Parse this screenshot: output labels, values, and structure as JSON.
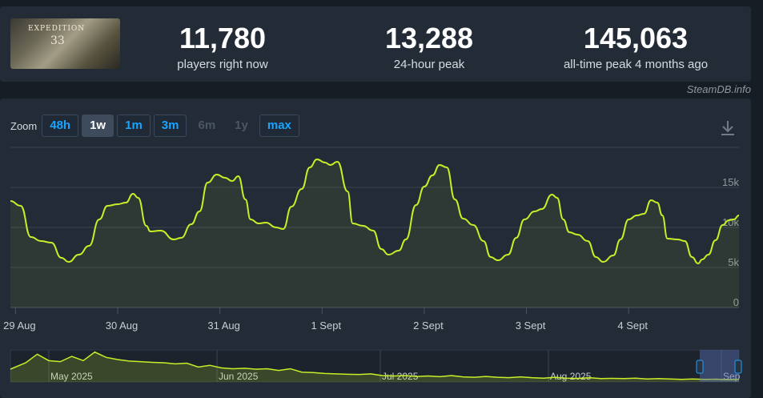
{
  "header": {
    "game_image_title": "EXPEDITION",
    "game_image_num": "33",
    "stats": [
      {
        "value": "11,780",
        "label": "players right now"
      },
      {
        "value": "13,288",
        "label": "24-hour peak"
      },
      {
        "value": "145,063",
        "label": "all-time peak 4 months ago"
      }
    ]
  },
  "watermark": "SteamDB.info",
  "zoom": {
    "label": "Zoom",
    "buttons": [
      {
        "label": "48h",
        "state": "normal"
      },
      {
        "label": "1w",
        "state": "active"
      },
      {
        "label": "1m",
        "state": "normal"
      },
      {
        "label": "3m",
        "state": "normal"
      },
      {
        "label": "6m",
        "state": "disabled"
      },
      {
        "label": "1y",
        "state": "disabled"
      },
      {
        "label": "max",
        "state": "normal"
      }
    ]
  },
  "colors": {
    "line": "#c9ee27",
    "grid": "#3a4553",
    "navigator_mask": "#5b6fb5"
  },
  "chart_data": [
    {
      "type": "line",
      "title": "",
      "xlabel": "",
      "ylabel": "",
      "ylim": [
        0,
        20000
      ],
      "y_ticks": [
        0,
        5000,
        10000,
        15000
      ],
      "y_tick_labels": [
        "0",
        "5k",
        "10k",
        "15k"
      ],
      "x_ticks": [
        0,
        1,
        2,
        3,
        4,
        5,
        6
      ],
      "x_tick_labels": [
        "29 Aug",
        "30 Aug",
        "31 Aug",
        "1 Sept",
        "2 Sept",
        "3 Sept",
        "4 Sept"
      ],
      "xlim": [
        -0.05,
        6.78
      ],
      "grid": true,
      "legend": "none",
      "series": [
        {
          "values": [
            [
              -0.05,
              13300
            ],
            [
              0.05,
              12700
            ],
            [
              0.15,
              8800
            ],
            [
              0.25,
              8300
            ],
            [
              0.35,
              8100
            ],
            [
              0.45,
              6200
            ],
            [
              0.52,
              5700
            ],
            [
              0.62,
              6600
            ],
            [
              0.72,
              7700
            ],
            [
              0.82,
              11000
            ],
            [
              0.9,
              12700
            ],
            [
              1.0,
              12900
            ],
            [
              1.08,
              13100
            ],
            [
              1.15,
              14200
            ],
            [
              1.2,
              13700
            ],
            [
              1.28,
              10200
            ],
            [
              1.32,
              9500
            ],
            [
              1.42,
              9600
            ],
            [
              1.55,
              8500
            ],
            [
              1.62,
              8700
            ],
            [
              1.72,
              10400
            ],
            [
              1.8,
              12000
            ],
            [
              1.88,
              15600
            ],
            [
              1.97,
              16600
            ],
            [
              2.05,
              16200
            ],
            [
              2.12,
              15800
            ],
            [
              2.18,
              16400
            ],
            [
              2.25,
              13500
            ],
            [
              2.3,
              11000
            ],
            [
              2.38,
              10500
            ],
            [
              2.45,
              10600
            ],
            [
              2.55,
              10000
            ],
            [
              2.62,
              9800
            ],
            [
              2.7,
              12600
            ],
            [
              2.8,
              14800
            ],
            [
              2.88,
              17500
            ],
            [
              2.95,
              18500
            ],
            [
              3.03,
              18100
            ],
            [
              3.08,
              17800
            ],
            [
              3.15,
              18200
            ],
            [
              3.25,
              14500
            ],
            [
              3.3,
              10500
            ],
            [
              3.4,
              10200
            ],
            [
              3.5,
              9600
            ],
            [
              3.58,
              7300
            ],
            [
              3.65,
              6600
            ],
            [
              3.75,
              7100
            ],
            [
              3.82,
              8500
            ],
            [
              3.92,
              12800
            ],
            [
              4.0,
              15100
            ],
            [
              4.08,
              16500
            ],
            [
              4.15,
              17800
            ],
            [
              4.22,
              17500
            ],
            [
              4.3,
              13500
            ],
            [
              4.38,
              11100
            ],
            [
              4.48,
              10300
            ],
            [
              4.58,
              8300
            ],
            [
              4.65,
              6300
            ],
            [
              4.72,
              5900
            ],
            [
              4.82,
              6600
            ],
            [
              4.9,
              8700
            ],
            [
              4.98,
              11000
            ],
            [
              5.08,
              12000
            ],
            [
              5.15,
              12300
            ],
            [
              5.25,
              14100
            ],
            [
              5.3,
              13700
            ],
            [
              5.36,
              11000
            ],
            [
              5.42,
              9400
            ],
            [
              5.5,
              9100
            ],
            [
              5.6,
              8300
            ],
            [
              5.68,
              6300
            ],
            [
              5.75,
              5700
            ],
            [
              5.85,
              6500
            ],
            [
              5.92,
              8500
            ],
            [
              6.0,
              11000
            ],
            [
              6.08,
              11500
            ],
            [
              6.15,
              11700
            ],
            [
              6.22,
              13400
            ],
            [
              6.28,
              13100
            ],
            [
              6.33,
              11500
            ],
            [
              6.38,
              8600
            ],
            [
              6.48,
              8500
            ],
            [
              6.55,
              8300
            ],
            [
              6.62,
              6300
            ],
            [
              6.68,
              5500
            ],
            [
              6.72,
              6000
            ],
            [
              6.78,
              6600
            ],
            [
              6.85,
              8400
            ],
            [
              6.92,
              10300
            ],
            [
              6.98,
              10900
            ],
            [
              7.03,
              11000
            ],
            [
              7.08,
              11500
            ]
          ]
        }
      ]
    },
    {
      "type": "area",
      "title": "navigator",
      "x_tick_labels": [
        "May 2025",
        "Jun 2025",
        "Jul 2025",
        "Aug 2025",
        "Sep"
      ],
      "ylim": [
        0,
        150000
      ],
      "series": [
        {
          "values": [
            [
              0,
              60000
            ],
            [
              4,
              90000
            ],
            [
              7,
              130000
            ],
            [
              10,
              100000
            ],
            [
              13,
              95000
            ],
            [
              16,
              120000
            ],
            [
              19,
              100000
            ],
            [
              22,
              140000
            ],
            [
              25,
              115000
            ],
            [
              28,
              105000
            ],
            [
              31,
              98000
            ],
            [
              34,
              95000
            ],
            [
              37,
              92000
            ],
            [
              40,
              90000
            ],
            [
              43,
              85000
            ],
            [
              46,
              88000
            ],
            [
              49,
              70000
            ],
            [
              52,
              78000
            ],
            [
              55,
              66000
            ],
            [
              58,
              62000
            ],
            [
              61,
              64000
            ],
            [
              64,
              60000
            ],
            [
              67,
              62000
            ],
            [
              70,
              54000
            ],
            [
              73,
              62000
            ],
            [
              76,
              46000
            ],
            [
              79,
              44000
            ],
            [
              82,
              40000
            ],
            [
              85,
              38000
            ],
            [
              88,
              36000
            ],
            [
              91,
              35000
            ],
            [
              94,
              38000
            ],
            [
              97,
              30000
            ],
            [
              100,
              28000
            ],
            [
              103,
              30000
            ],
            [
              106,
              26000
            ],
            [
              109,
              28000
            ],
            [
              112,
              25000
            ],
            [
              115,
              30000
            ],
            [
              118,
              24000
            ],
            [
              121,
              22000
            ],
            [
              124,
              26000
            ],
            [
              127,
              22000
            ],
            [
              130,
              20000
            ],
            [
              133,
              24000
            ],
            [
              136,
              20000
            ],
            [
              139,
              18000
            ],
            [
              142,
              22000
            ],
            [
              145,
              18000
            ],
            [
              148,
              17000
            ],
            [
              151,
              20000
            ],
            [
              154,
              16000
            ],
            [
              157,
              17000
            ],
            [
              160,
              16000
            ],
            [
              163,
              18000
            ],
            [
              166,
              14000
            ],
            [
              169,
              16000
            ],
            [
              172,
              14000
            ],
            [
              175,
              12000
            ],
            [
              178,
              14000
            ],
            [
              181,
              12000
            ],
            [
              184,
              13000
            ],
            [
              187,
              11000
            ],
            [
              190,
              12000
            ]
          ]
        }
      ]
    }
  ]
}
